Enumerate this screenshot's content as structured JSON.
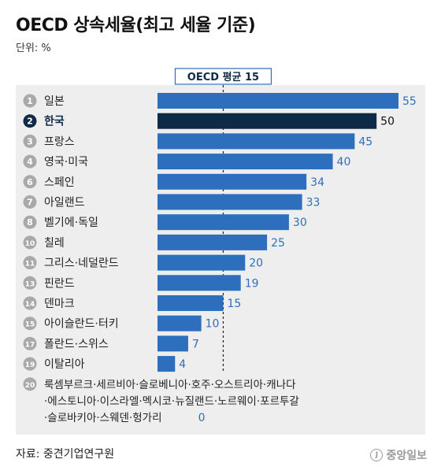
{
  "chart_data": {
    "type": "bar",
    "orientation": "horizontal",
    "title": "OECD 상속세율(최고 세율 기준)",
    "unit_label": "단위: %",
    "reference_line": {
      "label": "OECD 평균 15",
      "value": 15
    },
    "highlight_color": "#0e2a47",
    "bar_color": "#2e6fbd",
    "rank_circle_color": "#a9a9a9",
    "xlim": [
      0,
      55
    ],
    "categories": [
      {
        "rank": "1",
        "name": "일본",
        "value": 55
      },
      {
        "rank": "2",
        "name": "한국",
        "value": 50,
        "highlight": true
      },
      {
        "rank": "3",
        "name": "프랑스",
        "value": 45
      },
      {
        "rank": "4",
        "name": "영국·미국",
        "value": 40
      },
      {
        "rank": "6",
        "name": "스페인",
        "value": 34
      },
      {
        "rank": "7",
        "name": "아일랜드",
        "value": 33
      },
      {
        "rank": "8",
        "name": "벨기에·독일",
        "value": 30
      },
      {
        "rank": "10",
        "name": "칠레",
        "value": 25
      },
      {
        "rank": "11",
        "name": "그리스·네덜란드",
        "value": 20
      },
      {
        "rank": "13",
        "name": "핀란드",
        "value": 19
      },
      {
        "rank": "14",
        "name": "덴마크",
        "value": 15
      },
      {
        "rank": "15",
        "name": "아이슬란드·터키",
        "value": 10
      },
      {
        "rank": "17",
        "name": "폴란드·스위스",
        "value": 7
      },
      {
        "rank": "19",
        "name": "이탈리아",
        "value": 4
      }
    ],
    "zero_group": {
      "rank": "20",
      "lines": [
        "룩셈부르크·세르비아·슬로베니아·호주·오스트리아·캐나다",
        "·에스토니아·이스라엘·멕시코·뉴질랜드·노르웨이·포르투갈",
        "·슬로바키아·스웨덴·헝가리"
      ],
      "value": 0
    }
  },
  "source": "자료: 중견기업연구원",
  "logo": "중앙일보"
}
